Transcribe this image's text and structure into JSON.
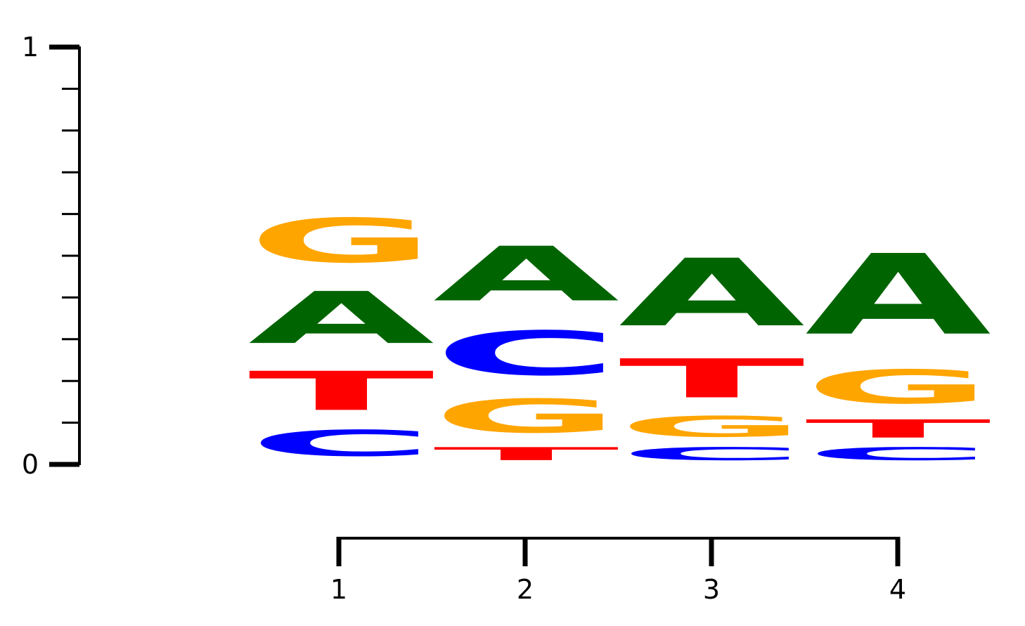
{
  "chart_data": {
    "type": "sequence-logo",
    "title": "",
    "xlabel": "",
    "ylabel": "",
    "ylim": [
      0,
      1
    ],
    "y_major_ticks": [
      0,
      1
    ],
    "y_minor_step": 0.1,
    "positions": [
      1,
      2,
      3,
      4
    ],
    "position_labels": [
      "1",
      "2",
      "3",
      "4"
    ],
    "y_labels": [
      "0",
      "1"
    ],
    "colors": {
      "A": "#006400",
      "C": "#0000ff",
      "G": "#ffa500",
      "T": "#ff0000"
    },
    "stacks": [
      {
        "position": 1,
        "letters": [
          {
            "letter": "C",
            "value": 0.1
          },
          {
            "letter": "T",
            "value": 0.15
          },
          {
            "letter": "A",
            "value": 0.2
          },
          {
            "letter": "G",
            "value": 0.17
          }
        ]
      },
      {
        "position": 2,
        "letters": [
          {
            "letter": "T",
            "value": 0.05
          },
          {
            "letter": "G",
            "value": 0.13
          },
          {
            "letter": "C",
            "value": 0.17
          },
          {
            "letter": "A",
            "value": 0.21
          }
        ]
      },
      {
        "position": 3,
        "letters": [
          {
            "letter": "C",
            "value": 0.05
          },
          {
            "letter": "G",
            "value": 0.08
          },
          {
            "letter": "T",
            "value": 0.15
          },
          {
            "letter": "A",
            "value": 0.26
          }
        ]
      },
      {
        "position": 4,
        "letters": [
          {
            "letter": "C",
            "value": 0.05
          },
          {
            "letter": "T",
            "value": 0.07
          },
          {
            "letter": "G",
            "value": 0.13
          },
          {
            "letter": "A",
            "value": 0.31
          }
        ]
      }
    ]
  }
}
